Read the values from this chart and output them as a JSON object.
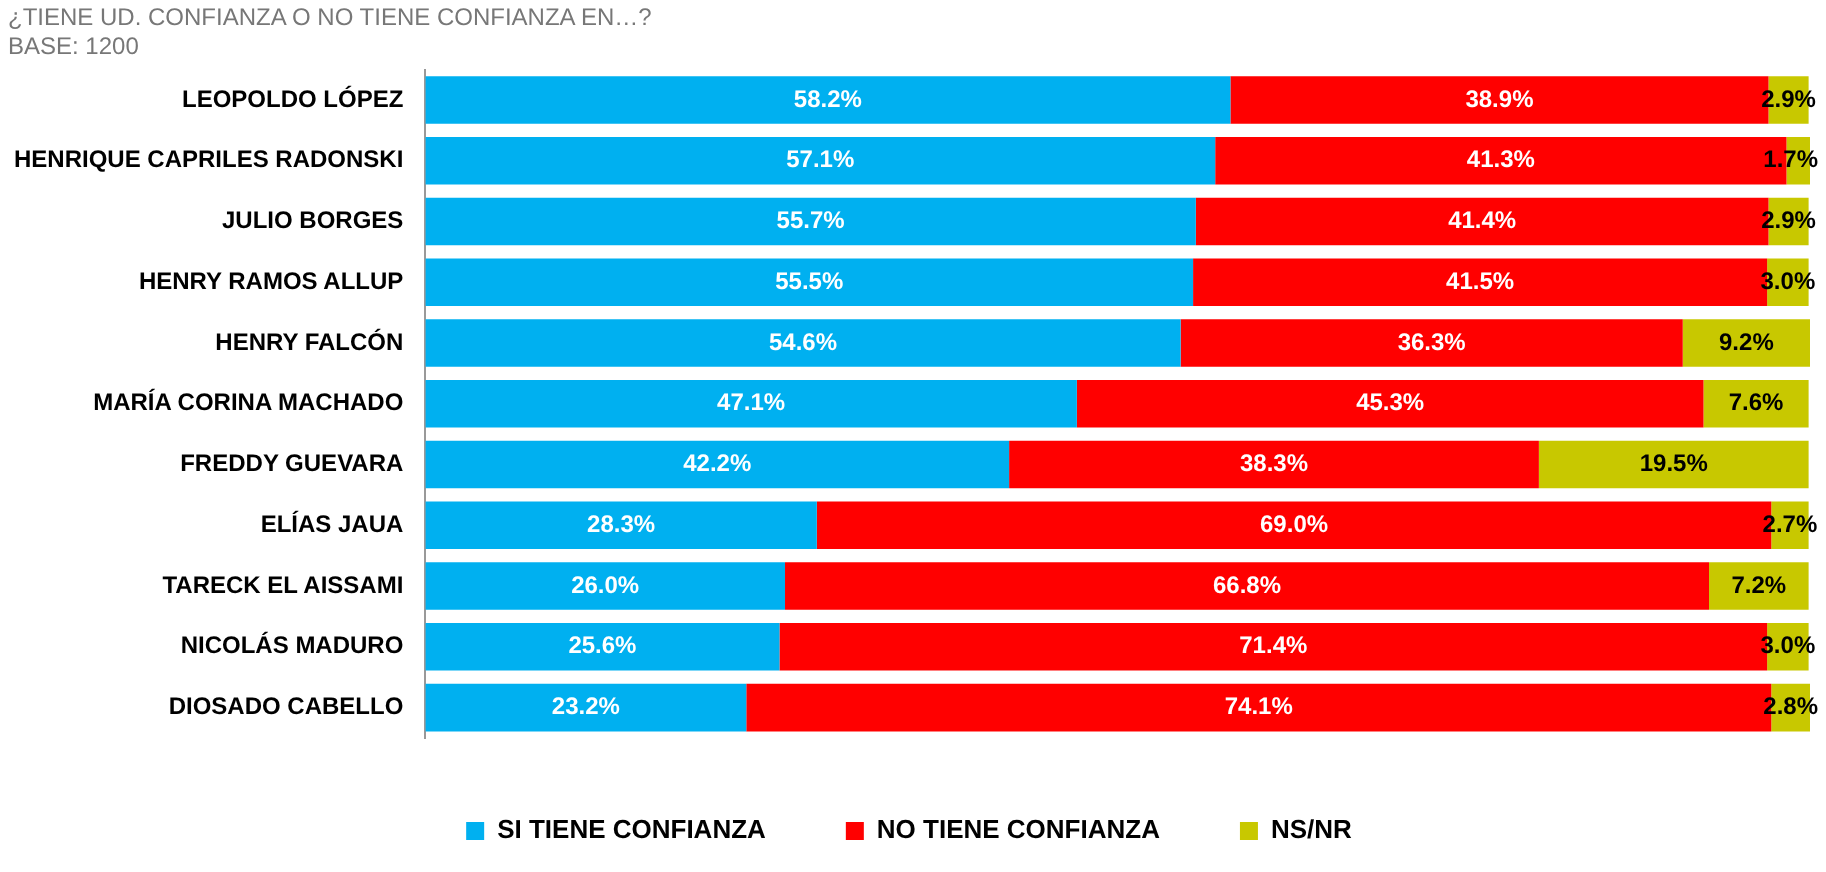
{
  "chart_data": {
    "type": "bar",
    "orientation": "horizontal",
    "stacked": true,
    "title": "¿TIENE UD. CONFIANZA O NO TIENE CONFIANZA EN…?",
    "subtitle": "BASE: 1200",
    "categories": [
      "LEOPOLDO LÓPEZ",
      "HENRIQUE CAPRILES RADONSKI",
      "JULIO BORGES",
      "HENRY RAMOS ALLUP",
      "HENRY FALCÓN",
      "MARÍA CORINA MACHADO",
      "FREDDY GUEVARA",
      "ELÍAS JAUA",
      "TARECK EL AISSAMI",
      "NICOLÁS MADURO",
      "DIOSADO CABELLO"
    ],
    "series": [
      {
        "name": "SI TIENE CONFIANZA",
        "color": "#00b0f0",
        "values": [
          58.2,
          57.1,
          55.7,
          55.5,
          54.6,
          47.1,
          42.2,
          28.3,
          26.0,
          25.6,
          23.2
        ],
        "value_labels": [
          "58.2%",
          "57.1%",
          "55.7%",
          "55.5%",
          "54.6%",
          "47.1%",
          "42.2%",
          "28.3%",
          "26.0%",
          "25.6%",
          "23.2%"
        ]
      },
      {
        "name": "NO TIENE CONFIANZA",
        "color": "#ff0000",
        "values": [
          38.9,
          41.3,
          41.4,
          41.5,
          36.3,
          45.3,
          38.3,
          69.0,
          66.8,
          71.4,
          74.1
        ],
        "value_labels": [
          "38.9%",
          "41.3%",
          "41.4%",
          "41.5%",
          "36.3%",
          "45.3%",
          "38.3%",
          "69.0%",
          "66.8%",
          "71.4%",
          "74.1%"
        ]
      },
      {
        "name": "NS/NR",
        "color": "#c8c800",
        "values": [
          2.9,
          1.7,
          2.9,
          3.0,
          9.2,
          7.6,
          19.5,
          2.7,
          7.2,
          3.0,
          2.8
        ],
        "value_labels": [
          "2.9%",
          "1.7%",
          "2.9%",
          "3.0%",
          "9.2%",
          "7.6%",
          "19.5%",
          "2.7%",
          "7.2%",
          "3.0%",
          "2.8%"
        ]
      }
    ],
    "legend": "bottom",
    "grid": false,
    "tick_labels": "y"
  }
}
